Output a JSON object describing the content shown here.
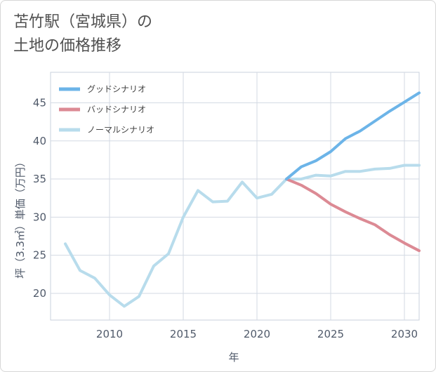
{
  "chart_data": {
    "type": "line",
    "title_line1": "苫竹駅（宮城県）の",
    "title_line2": "土地の価格推移",
    "xlabel": "年",
    "ylabel": "坪（3.3㎡）単価（万円）",
    "xlim": [
      2006,
      2031
    ],
    "ylim": [
      16.5,
      49
    ],
    "x_ticks": [
      2010,
      2015,
      2020,
      2025,
      2030
    ],
    "y_ticks": [
      20,
      25,
      30,
      35,
      40,
      45
    ],
    "grid": true,
    "legend_position": "top-left",
    "series": [
      {
        "name": "グッドシナリオ",
        "color": "#6cb4e8",
        "x": [
          2022,
          2023,
          2024,
          2025,
          2026,
          2027,
          2028,
          2029,
          2030,
          2031
        ],
        "values": [
          35.0,
          36.6,
          37.4,
          38.6,
          40.3,
          41.3,
          42.6,
          43.9,
          45.1,
          46.3
        ]
      },
      {
        "name": "バッドシナリオ",
        "color": "#dc8a94",
        "x": [
          2022,
          2023,
          2024,
          2025,
          2026,
          2027,
          2028,
          2029,
          2030,
          2031
        ],
        "values": [
          35.0,
          34.2,
          33.1,
          31.7,
          30.7,
          29.8,
          29.0,
          27.7,
          26.6,
          25.6
        ]
      },
      {
        "name": "ノーマルシナリオ",
        "color": "#b8dcec",
        "x": [
          2007,
          2008,
          2009,
          2010,
          2011,
          2012,
          2013,
          2014,
          2015,
          2016,
          2017,
          2018,
          2019,
          2020,
          2021,
          2022,
          2023,
          2024,
          2025,
          2026,
          2027,
          2028,
          2029,
          2030,
          2031
        ],
        "values": [
          26.5,
          23.0,
          22.0,
          19.8,
          18.3,
          19.6,
          23.6,
          25.2,
          30.0,
          33.5,
          32.0,
          32.1,
          34.6,
          32.5,
          33.0,
          35.0,
          35.0,
          35.5,
          35.4,
          36.0,
          36.0,
          36.3,
          36.4,
          36.8,
          36.8
        ]
      }
    ]
  }
}
